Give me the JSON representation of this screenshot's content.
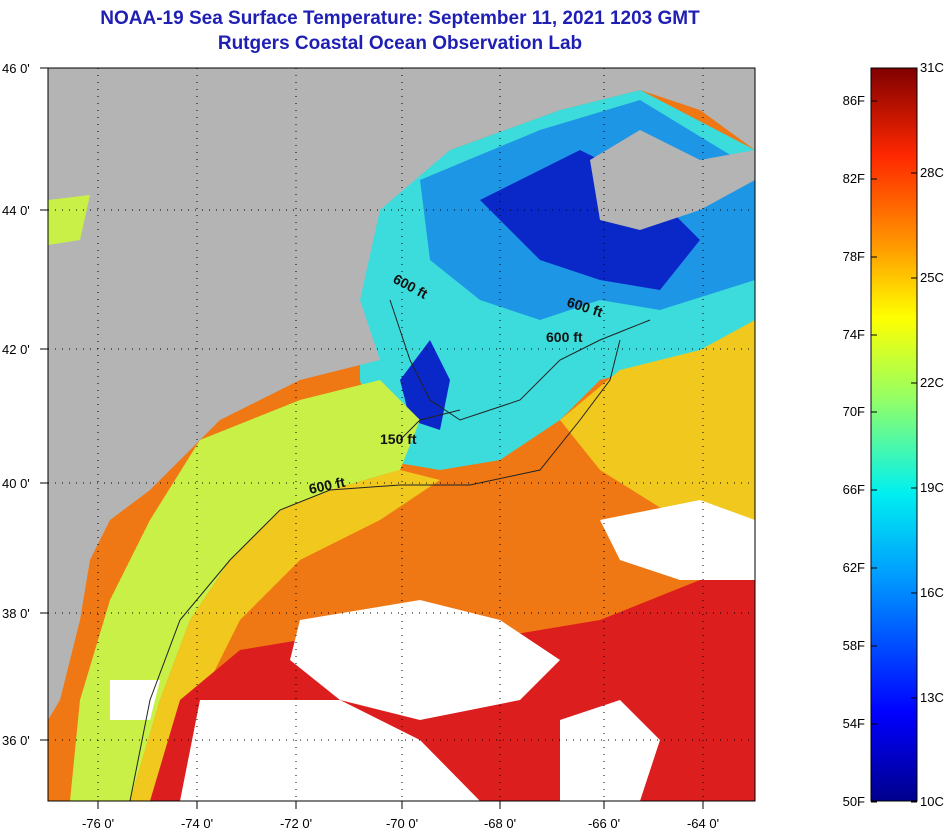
{
  "title": "NOAA-19 Sea Surface Temperature:  September 11, 2021 1203 GMT",
  "subtitle": "Rutgers Coastal Ocean Observation Lab",
  "map": {
    "lon_ticks": [
      "-76 0'",
      "-74 0'",
      "-72 0'",
      "-70 0'",
      "-68 0'",
      "-66 0'",
      "-64 0'"
    ],
    "lat_ticks": [
      "46 0'",
      "44 0'",
      "42 0'",
      "40 0'",
      "38 0'",
      "36 0'"
    ],
    "contour_labels": [
      "600 ft",
      "600 ft",
      "600 ft",
      "150 ft",
      "600 ft"
    ],
    "colors": {
      "land": "#b4b4b4",
      "cloud": "#ffffff",
      "cold": "#0a28c8",
      "cool": "#1e96e6",
      "mid": "#3cdcdc",
      "mild": "#c8f046",
      "warm": "#f0c81e",
      "hot": "#f07814",
      "hottest": "#dc1e1e"
    }
  },
  "colorbar": {
    "f_labels": [
      "86F",
      "82F",
      "78F",
      "74F",
      "70F",
      "66F",
      "62F",
      "58F",
      "54F",
      "50F"
    ],
    "c_labels": [
      "31C",
      "28C",
      "25C",
      "22C",
      "19C",
      "16C",
      "13C",
      "10C"
    ]
  }
}
